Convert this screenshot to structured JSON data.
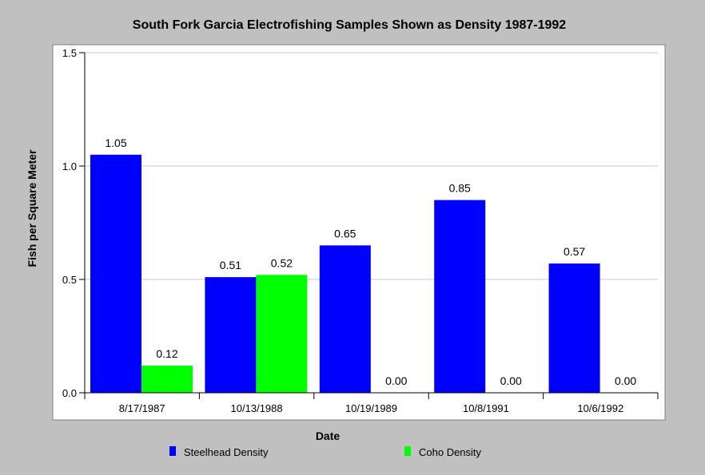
{
  "chart_data": {
    "type": "bar",
    "title": "South Fork Garcia Electrofishing Samples Shown as Density 1987-1992",
    "xlabel": "Date",
    "ylabel": "Fish per Square Meter",
    "categories": [
      "8/17/1987",
      "10/13/1988",
      "10/19/1989",
      "10/8/1991",
      "10/6/1992"
    ],
    "series": [
      {
        "name": "Steelhead Density",
        "color": "#0000ff",
        "values": [
          1.05,
          0.51,
          0.65,
          0.85,
          0.57
        ],
        "labels": [
          "1.05",
          "0.51",
          "0.65",
          "0.85",
          "0.57"
        ]
      },
      {
        "name": "Coho Density",
        "color": "#00ff00",
        "values": [
          0.12,
          0.52,
          0.0,
          0.0,
          0.0
        ],
        "labels": [
          "0.12",
          "0.52",
          "0.00",
          "0.00",
          "0.00"
        ]
      }
    ],
    "ylim": [
      0,
      1.5
    ],
    "yticks": [
      0,
      0.5,
      1.0,
      1.5
    ],
    "ytick_labels": [
      "0.0",
      "0.5",
      "1.0",
      "1.5"
    ],
    "grid": true,
    "legend_position": "bottom"
  }
}
